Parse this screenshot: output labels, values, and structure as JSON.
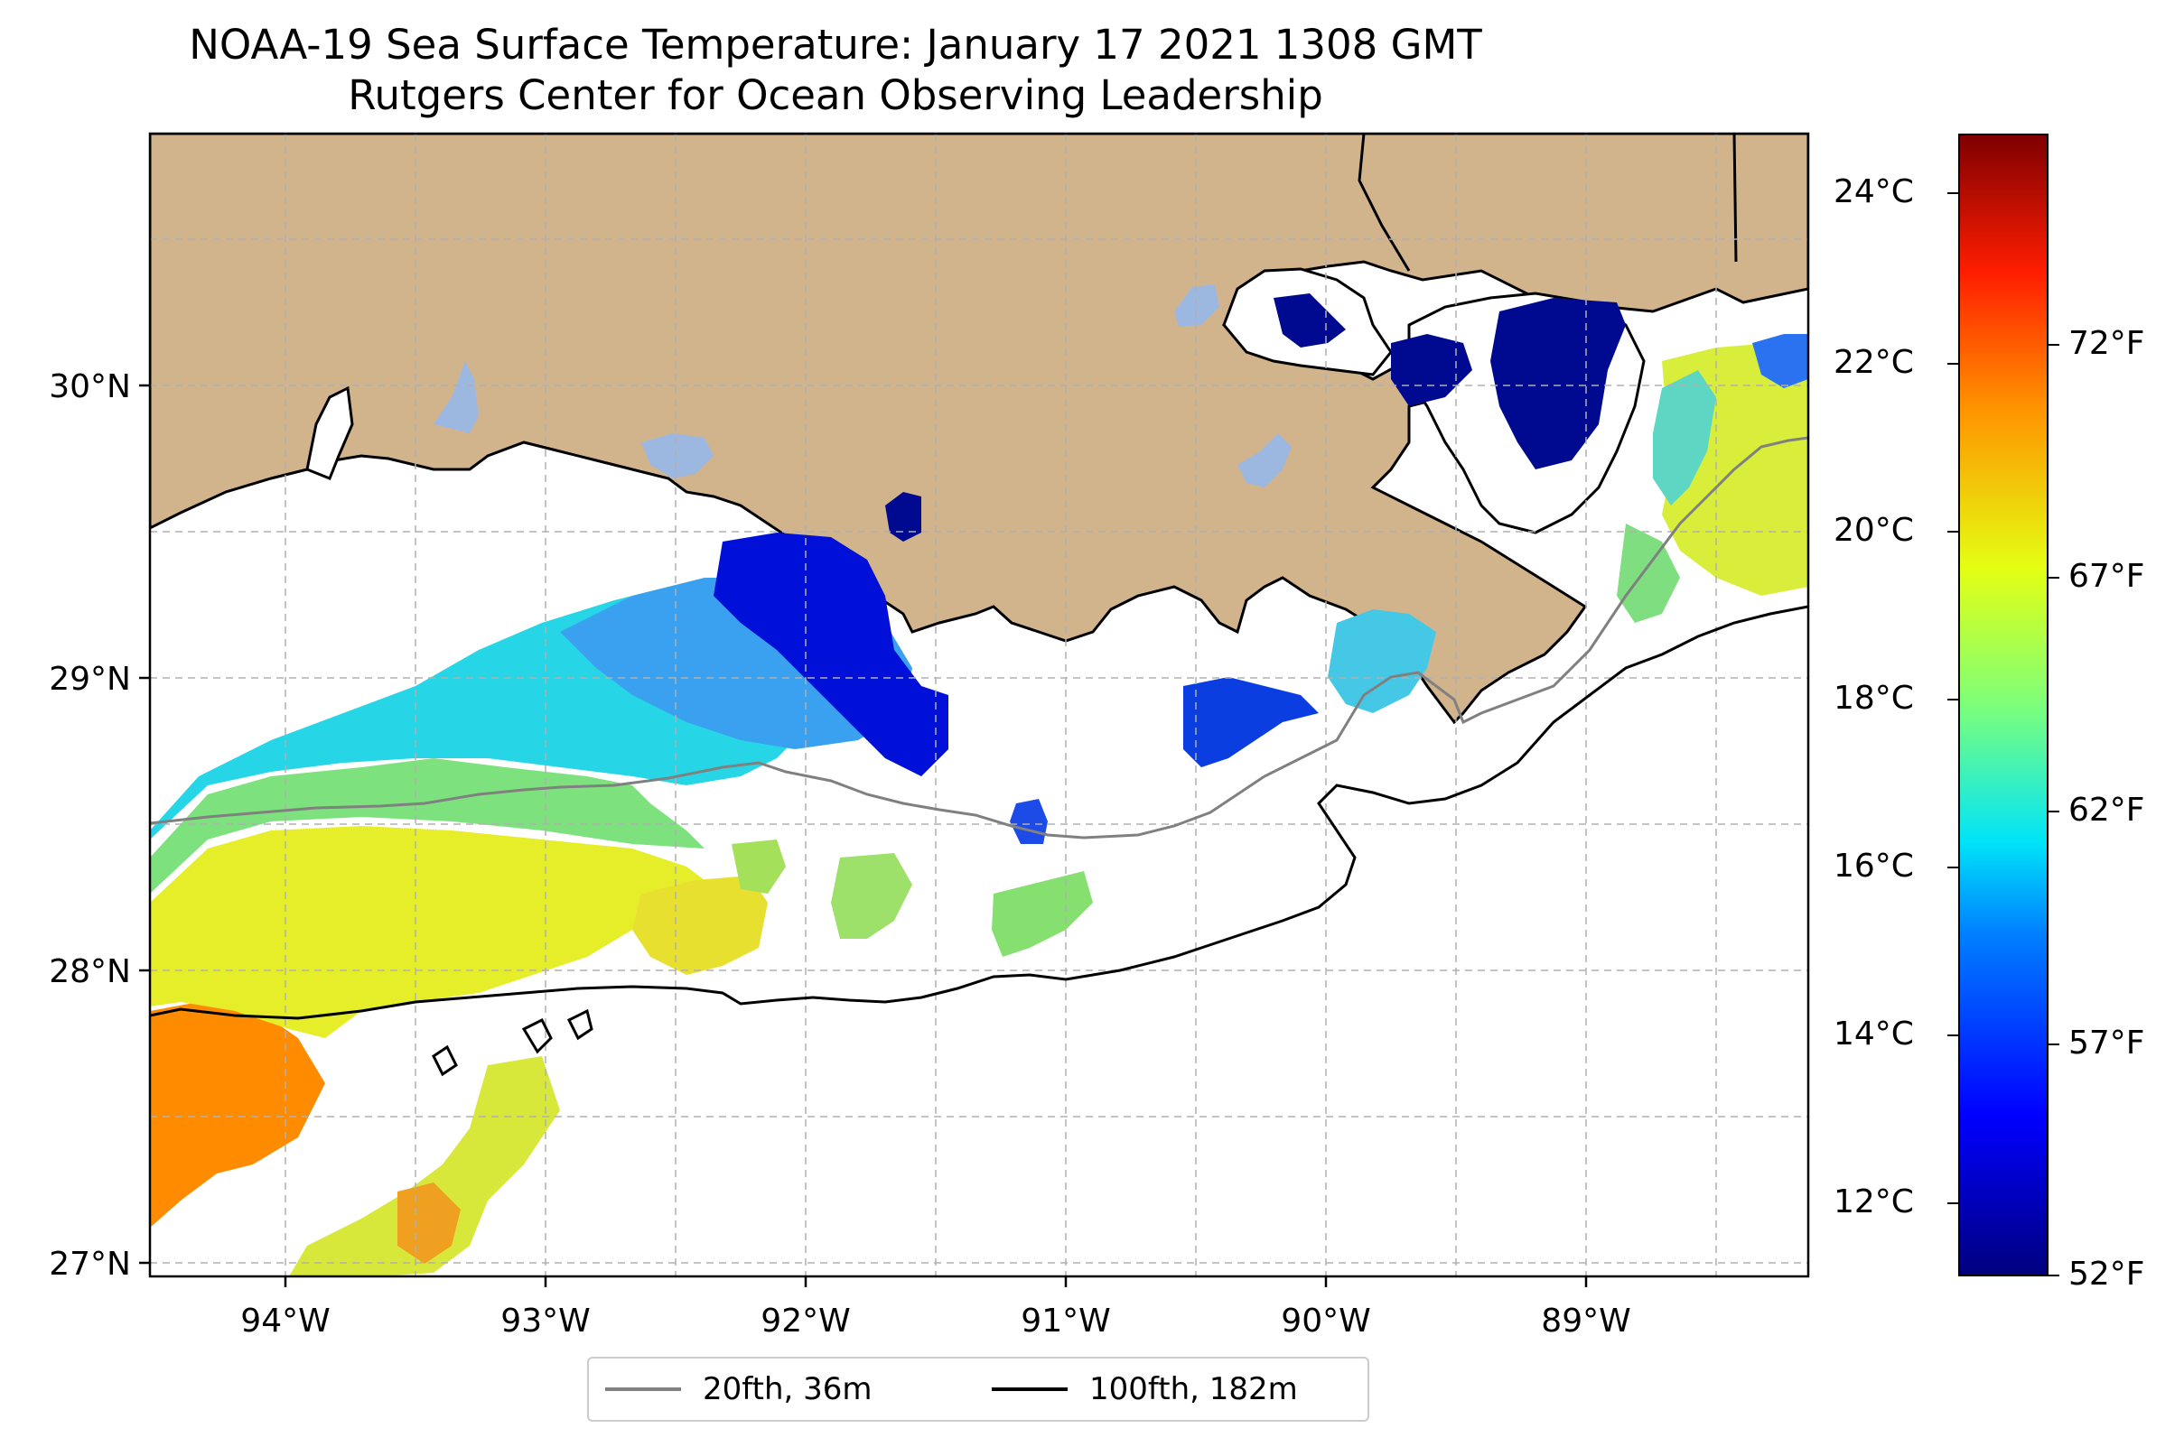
{
  "title": {
    "line1": "NOAA-19 Sea Surface Temperature: January 17 2021 1308 GMT",
    "line2": "Rutgers Center for Ocean Observing Leadership"
  },
  "map": {
    "lon_range": [
      -94.55,
      -88.2
    ],
    "lat_range": [
      26.93,
      30.86
    ],
    "lon_ticks": [
      {
        "value": -94,
        "label": "94°W"
      },
      {
        "value": -93,
        "label": "93°W"
      },
      {
        "value": -92,
        "label": "92°W"
      },
      {
        "value": -91,
        "label": "91°W"
      },
      {
        "value": -90,
        "label": "90°W"
      },
      {
        "value": -89,
        "label": "89°W"
      }
    ],
    "lat_ticks": [
      {
        "value": 30,
        "label": "30°N"
      },
      {
        "value": 29,
        "label": "29°N"
      },
      {
        "value": 28,
        "label": "28°N"
      },
      {
        "value": 27,
        "label": "27°N"
      }
    ],
    "grid": true,
    "colors": {
      "land": "#d2b48c",
      "ocean_no_data": "#ffffff",
      "lakes": "#9db8e0",
      "isobath_20fth": "#808080",
      "isobath_100fth": "#000000"
    }
  },
  "legend": {
    "items": [
      {
        "label": "20fth, 36m",
        "color": "#808080"
      },
      {
        "label": "100fth, 182m",
        "color": "#000000"
      }
    ]
  },
  "colorbar": {
    "colormap": "jet",
    "celsius_range": [
      11.1,
      24.8
    ],
    "celsius_ticks": [
      "12°C",
      "14°C",
      "16°C",
      "18°C",
      "20°C",
      "22°C",
      "24°C"
    ],
    "fahrenheit_ticks": [
      "52°F",
      "57°F",
      "62°F",
      "67°F",
      "72°F"
    ]
  }
}
